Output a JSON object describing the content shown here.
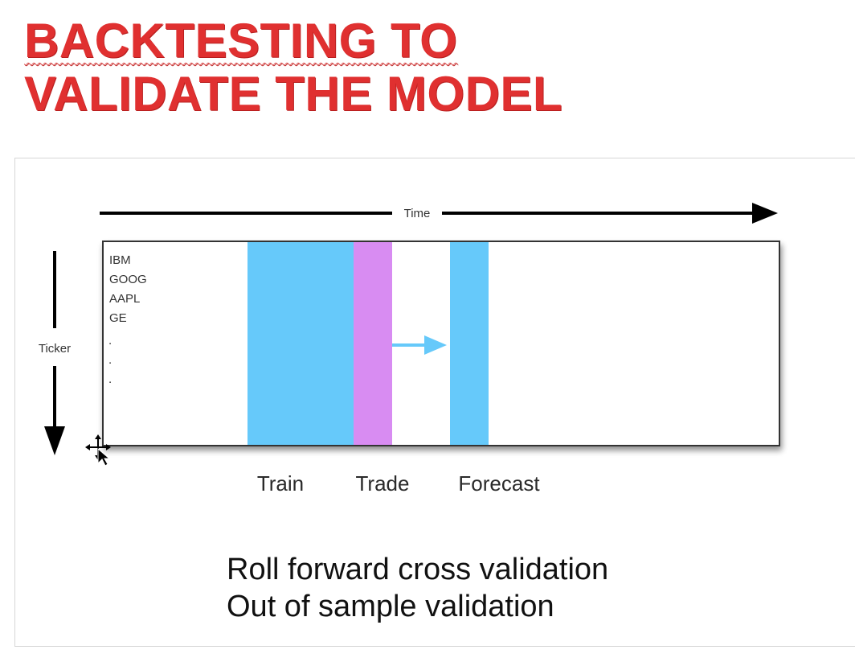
{
  "title": {
    "line1": "BACKTESTING TO",
    "line2": "VALIDATE THE MODEL"
  },
  "diagram": {
    "time_axis_label": "Time",
    "ticker_axis_label": "Ticker",
    "tickers": [
      "IBM",
      "GOOG",
      "AAPL",
      "GE"
    ],
    "ellipsis": [
      ".",
      ".",
      "."
    ],
    "window_labels": {
      "train": "Train",
      "trade": "Trade",
      "forecast": "Forecast"
    },
    "colors": {
      "train": "#66c9fa",
      "trade": "#d88cf2",
      "forecast": "#66c9fa",
      "arrow": "#66c9fa",
      "axis": "#000000",
      "title": "#e03030"
    }
  },
  "caption": {
    "line1": "Roll forward cross validation",
    "line2": "Out of sample validation"
  },
  "icons": {
    "cursor": "move-cursor-icon"
  }
}
